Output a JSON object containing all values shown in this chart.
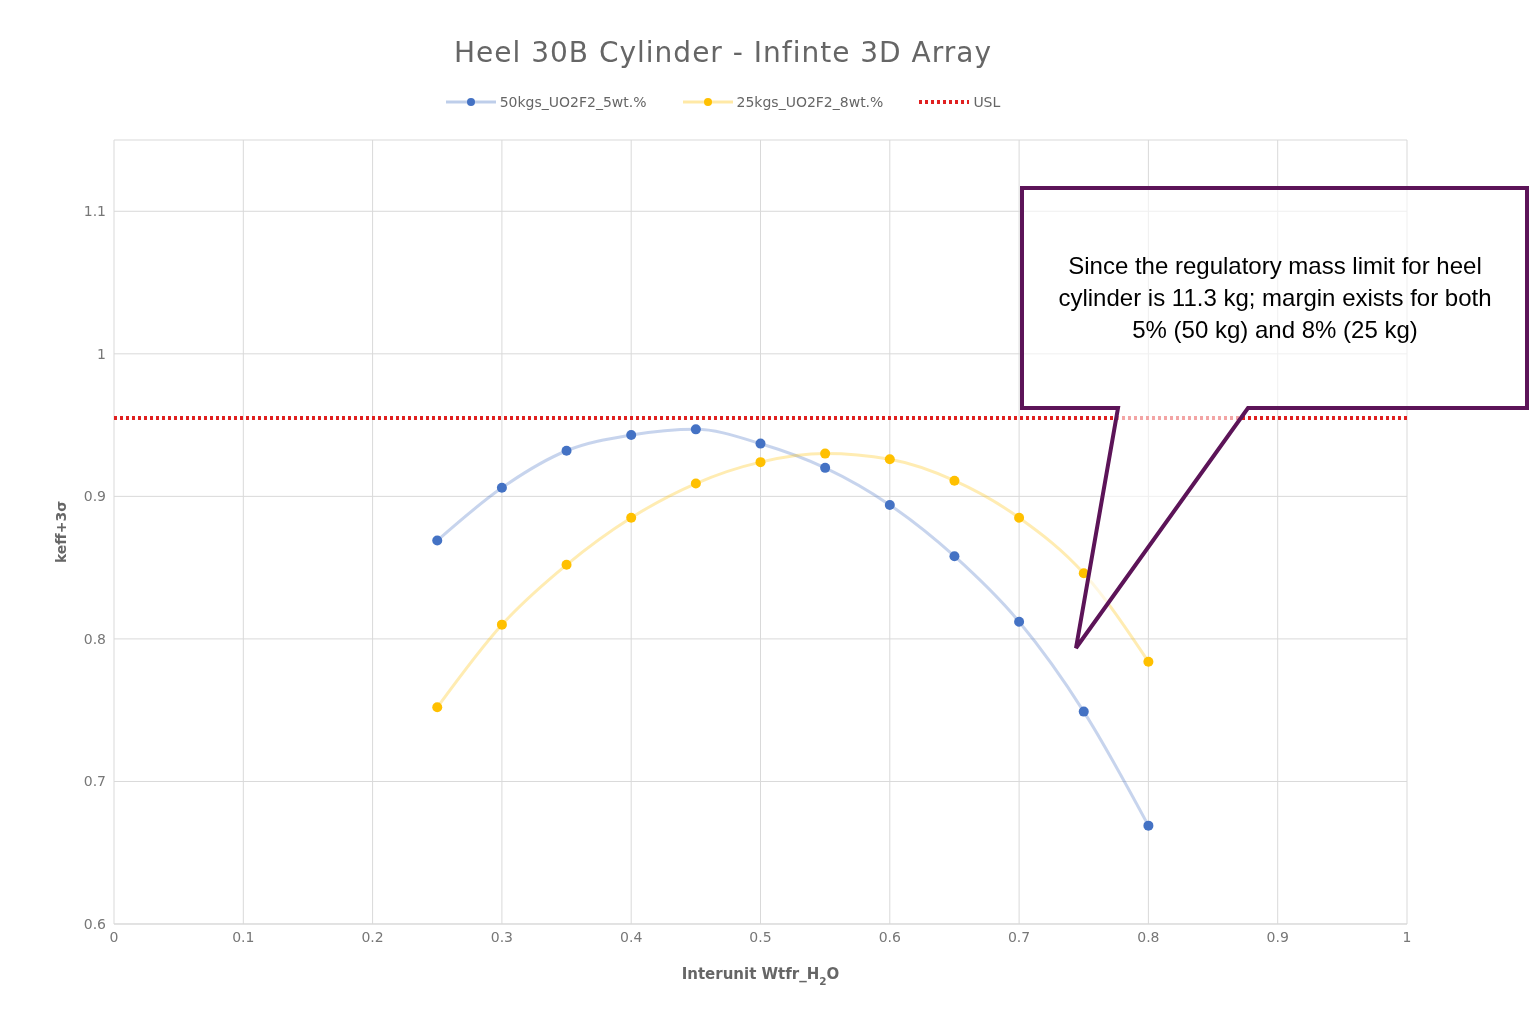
{
  "chart_data": {
    "type": "line",
    "title": "Heel 30B Cylinder - Infinte 3D Array",
    "xlabel": "Interunit Wtfr_H$_{2}$O",
    "ylabel": "keff+3σ",
    "x": [
      0.25,
      0.3,
      0.35,
      0.4,
      0.45,
      0.5,
      0.55,
      0.6,
      0.65,
      0.7,
      0.75,
      0.8
    ],
    "series": [
      {
        "name": "50kgs_UO2F2_5wt.%",
        "color": "#4472c4",
        "values": [
          0.869,
          0.906,
          0.932,
          0.943,
          0.947,
          0.937,
          0.92,
          0.894,
          0.858,
          0.812,
          0.749,
          0.669
        ]
      },
      {
        "name": "25kgs_UO2F2_8wt.%",
        "color": "#ffc000",
        "values": [
          0.752,
          0.81,
          0.852,
          0.885,
          0.909,
          0.924,
          0.93,
          0.926,
          0.911,
          0.885,
          0.846,
          0.784
        ]
      }
    ],
    "ref_lines": [
      {
        "axis": "y",
        "value": 0.955,
        "label": "USL",
        "color": "#e02020",
        "line_style": "dotted"
      }
    ],
    "annotations": [
      "Since the regulatory mass limit for heel cylinder is 11.3 kg; margin exists for both 5% (50 kg) and 8% (25 kg)"
    ],
    "xlim": [
      0,
      1
    ],
    "xticks": [
      0,
      0.1,
      0.2,
      0.3,
      0.4,
      0.5,
      0.6,
      0.7,
      0.8,
      0.9,
      1
    ],
    "ylim": [
      0.6,
      1.15
    ],
    "yticks": [
      0.6,
      0.7,
      0.8,
      0.9,
      1,
      1.1
    ],
    "grid": true,
    "legend": "top",
    "marker": "circle",
    "line_style": "solid"
  }
}
